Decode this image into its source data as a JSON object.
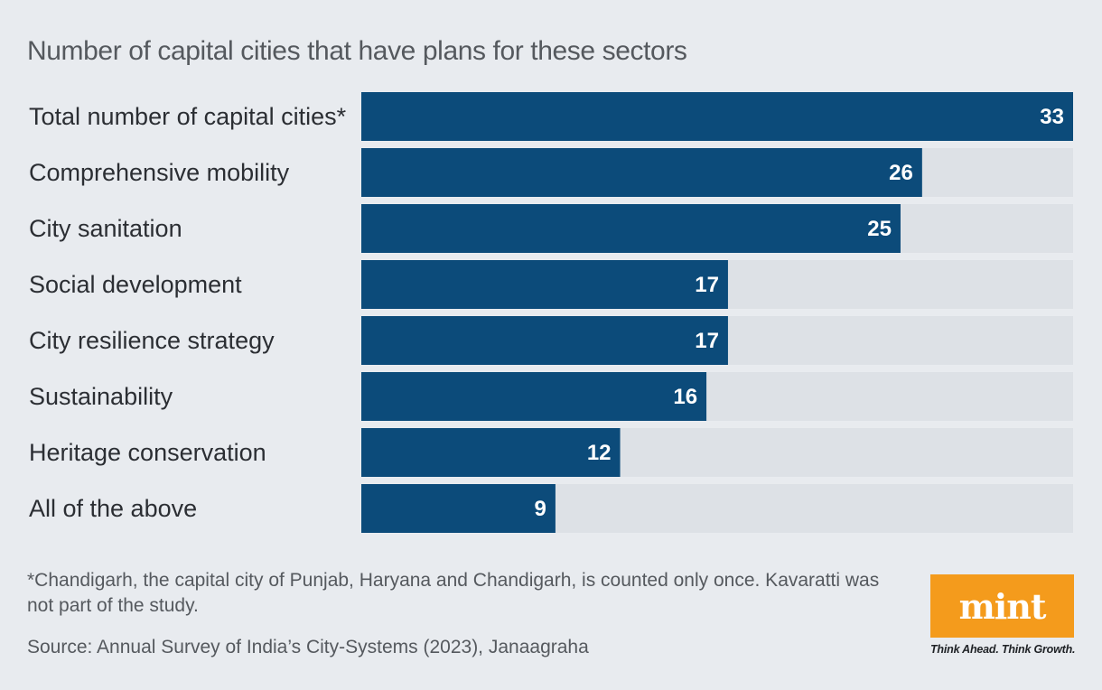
{
  "chart_data": {
    "type": "bar",
    "orientation": "horizontal",
    "title": "Number of capital cities that have plans for these sectors",
    "categories": [
      "Total number of capital cities*",
      "Comprehensive mobility",
      "City sanitation",
      "Social development",
      "City resilience strategy",
      "Sustainability",
      "Heritage conservation",
      "All of the above"
    ],
    "values": [
      33,
      26,
      25,
      17,
      17,
      16,
      12,
      9
    ],
    "xlim": [
      0,
      33
    ],
    "bar_color": "#0c4b7a",
    "track_color": "#dde1e6",
    "grid": false
  },
  "footnote": "*Chandigarh, the capital city of Punjab, Haryana and Chandigarh, is counted only once. Kavaratti was not part of the study.",
  "source": "Source: Annual Survey of India’s City-Systems (2023), Janaagraha",
  "brand": {
    "name": "mint",
    "tagline": "Think Ahead. Think Growth.",
    "color": "#f49b1c"
  }
}
